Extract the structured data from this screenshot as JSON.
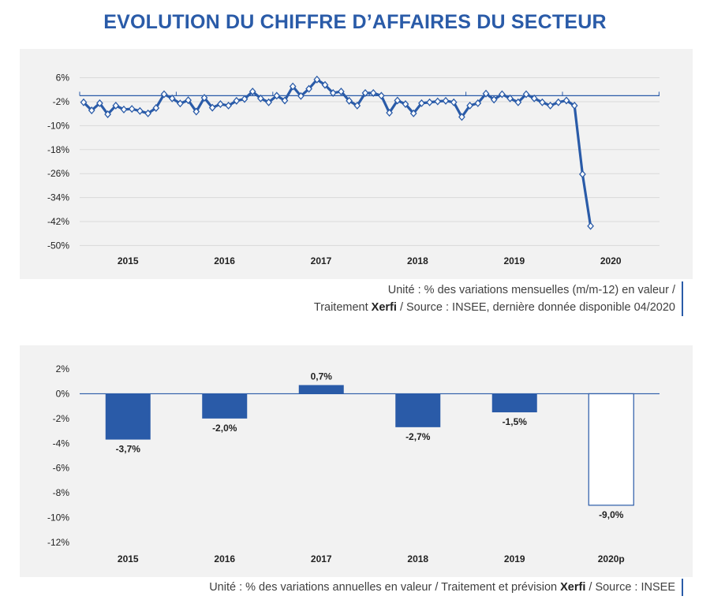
{
  "title": "EVOLUTION DU CHIFFRE D’AFFAIRES DU SECTEUR",
  "colors": {
    "accent": "#2a5ba8",
    "panel": "#f2f2f2",
    "grid": "#d9d9d9"
  },
  "chart_data": [
    {
      "type": "line",
      "ylim": [
        -50,
        6
      ],
      "yticks": [
        6,
        -2,
        -10,
        -18,
        -26,
        -34,
        -42,
        -50
      ],
      "ytick_labels": [
        "6%",
        "-2%",
        "-10%",
        "-18%",
        "-26%",
        "-34%",
        "-42%",
        "-50%"
      ],
      "xtick_labels": [
        "2015",
        "2016",
        "2017",
        "2018",
        "2019",
        "2020"
      ],
      "grid": true,
      "marker": "diamond",
      "series": [
        {
          "values": [
            -2.2,
            -4.9,
            -2.5,
            -6.2,
            -3.3,
            -4.6,
            -4.4,
            -5.1,
            -5.9,
            -4.1,
            0.5,
            -0.9,
            -2.6,
            -1.5,
            -5.3,
            -0.7,
            -4.0,
            -2.8,
            -3.3,
            -1.7,
            -1.1,
            1.4,
            -0.9,
            -2.2,
            0.0,
            -1.6,
            3.1,
            -0.1,
            2.3,
            5.4,
            3.6,
            0.9,
            1.4,
            -1.7,
            -3.3,
            0.9,
            0.9,
            0.0,
            -5.7,
            -1.6,
            -2.8,
            -5.9,
            -2.5,
            -2.2,
            -1.9,
            -1.7,
            -2.2,
            -7.1,
            -3.3,
            -2.5,
            0.7,
            -1.3,
            0.5,
            -0.9,
            -2.2,
            0.5,
            -0.9,
            -2.2,
            -3.3,
            -2.2,
            -1.6,
            -3.3,
            -26.2,
            -43.5
          ]
        }
      ]
    },
    {
      "type": "bar",
      "categories": [
        "2015",
        "2016",
        "2017",
        "2018",
        "2019",
        "2020p"
      ],
      "values": [
        -3.7,
        -2.0,
        0.7,
        -2.7,
        -1.5,
        -9.0
      ],
      "data_labels": [
        "-3,7%",
        "-2,0%",
        "0,7%",
        "-2,7%",
        "-1,5%",
        "-9,0%"
      ],
      "forecast": [
        false,
        false,
        false,
        false,
        false,
        true
      ],
      "ylim": [
        -12,
        2
      ],
      "yticks": [
        2,
        0,
        -2,
        -4,
        -6,
        -8,
        -10,
        -12
      ],
      "ytick_labels": [
        "2%",
        "0%",
        "-2%",
        "-4%",
        "-6%",
        "-8%",
        "-10%",
        "-12%"
      ],
      "grid": false
    }
  ],
  "notes": {
    "top_line1": "Unité : % des variations mensuelles (m/m-12) en valeur /",
    "top_line2_pre": "Traitement ",
    "top_line2_brand": "Xerfi",
    "top_line2_post": " / Source : INSEE, dernière donnée disponible 04/2020",
    "bottom_pre": "Unité : % des variations annuelles en valeur / Traitement et prévision ",
    "bottom_brand": "Xerfi",
    "bottom_post": " / Source : INSEE"
  }
}
